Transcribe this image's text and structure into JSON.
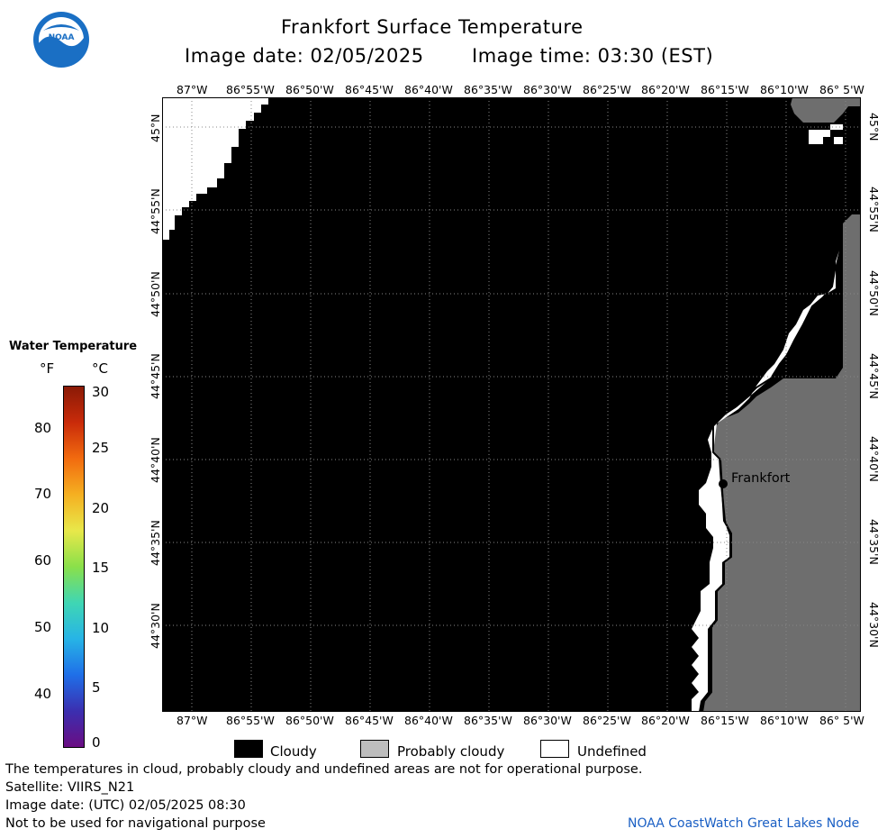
{
  "header": {
    "title": "Frankfort Surface Temperature",
    "image_date_label": "Image date: 02/05/2025",
    "image_time_label": "Image time: 03:30 (EST)"
  },
  "logo": {
    "text": "NOAA"
  },
  "longitude_ticks": [
    "87°W",
    "86°55'W",
    "86°50'W",
    "86°45'W",
    "86°40'W",
    "86°35'W",
    "86°30'W",
    "86°25'W",
    "86°20'W",
    "86°15'W",
    "86°10'W",
    "86° 5'W"
  ],
  "latitude_ticks": [
    "45°N",
    "44°55'N",
    "44°50'N",
    "44°45'N",
    "44°40'N",
    "44°35'N",
    "44°30'N"
  ],
  "place": {
    "name": "Frankfort"
  },
  "colorbar": {
    "title": "Water Temperature",
    "unit_f": "°F",
    "unit_c": "°C",
    "f_ticks": [
      "80",
      "70",
      "60",
      "50",
      "40"
    ],
    "c_ticks": [
      "30",
      "25",
      "20",
      "15",
      "10",
      "5",
      "0"
    ],
    "colors": [
      "#6a0d83",
      "#3b2fb0",
      "#1f6fe8",
      "#27b4e6",
      "#3fd6b4",
      "#8ae04a",
      "#e8e84a",
      "#f5b021",
      "#f26b0f",
      "#c92b0a",
      "#8a1a06"
    ]
  },
  "legend": {
    "cloudy": "Cloudy",
    "probably_cloudy": "Probably cloudy",
    "undefined": "Undefined",
    "cloudy_color": "#000000",
    "probably_cloudy_color": "#bdbdbd",
    "undefined_color": "#ffffff",
    "land_color": "#6e6e6e"
  },
  "footer": {
    "disclaimer": "The temperatures in cloud, probably cloudy and undefined areas are not for operational purpose.",
    "satellite": "Satellite: VIIRS_N21",
    "utc_date": "Image date: (UTC) 02/05/2025  08:30",
    "nav_warning": "Not to be used for navigational purpose",
    "credit": "NOAA CoastWatch Great Lakes Node"
  }
}
